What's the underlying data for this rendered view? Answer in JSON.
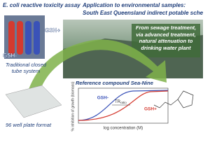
{
  "assay": {
    "title": "E. coli reactive toxicity assay",
    "tube_plus": "GSH+",
    "tube_minus": "GSH-",
    "caption": "Traditional closed tube system",
    "plate_caption": "96 well plate format"
  },
  "application": {
    "title": "Application to environmental samples:",
    "subtitle": "South East Queensland indirect potable scheme",
    "box": "From sewage treatment, via advanced treatment, natural attenuation to drinking water plant"
  },
  "plot": {
    "title": "Reference compound Sea-Nine",
    "curve_minus": "GSH-",
    "curve_plus": "GSH+",
    "ratio": "TR",
    "ratio_sub": "ratio",
    "y_label": "% inhibition of growth (biomass)",
    "x_label": "log concentration (M)"
  }
}
